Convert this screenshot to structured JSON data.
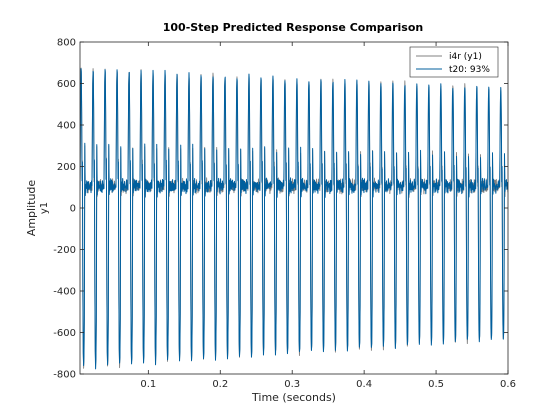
{
  "chart_data": {
    "type": "line",
    "title": "100-Step Predicted Response Comparison",
    "xlabel": "Time (seconds)",
    "ylabel": "Amplitude",
    "channel_label": "y1",
    "xlim": [
      0.005,
      0.6
    ],
    "ylim": [
      -800,
      800
    ],
    "x_ticks": [
      0.1,
      0.2,
      0.3,
      0.4,
      0.5,
      0.6
    ],
    "x_tick_labels": [
      "0.1",
      "0.2",
      "0.3",
      "0.4",
      "0.5",
      "0.6"
    ],
    "y_ticks": [
      -800,
      -600,
      -400,
      -200,
      0,
      200,
      400,
      600,
      800
    ],
    "y_tick_labels": [
      "-800",
      "-600",
      "-400",
      "-200",
      "0",
      "200",
      "400",
      "600",
      "800"
    ],
    "grid": false,
    "legend_position": "top-right",
    "series": [
      {
        "name": "i4r (y1)",
        "color": "#808080",
        "signal": {
          "period": 0.01667,
          "peak_start": 670,
          "peak_end": 575,
          "trough_start": -765,
          "trough_end": -630,
          "plateau": 110
        }
      },
      {
        "name": "t20: 93%",
        "color": "#005f9e",
        "signal": {
          "period": 0.01667,
          "peak_start": 670,
          "peak_end": 575,
          "trough_start": -765,
          "trough_end": -630,
          "plateau": 110
        }
      }
    ]
  }
}
